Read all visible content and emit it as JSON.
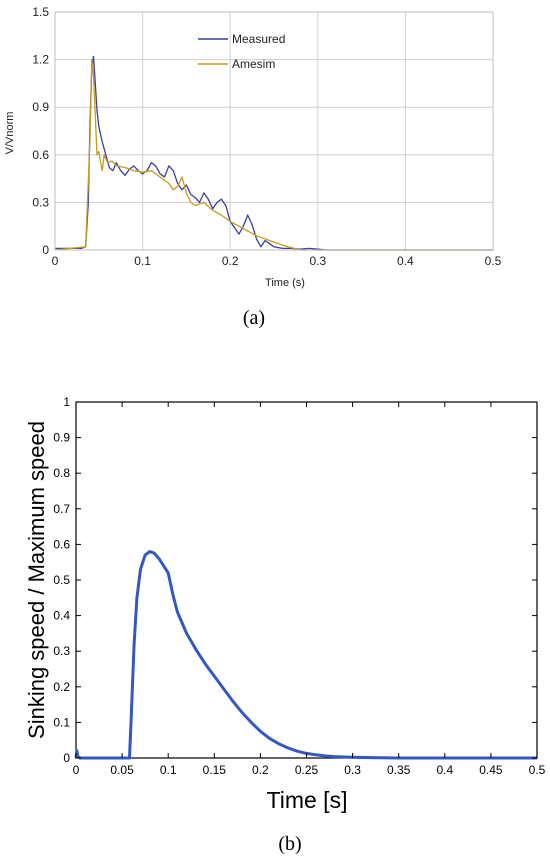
{
  "panels": [
    {
      "caption": "(a)",
      "chart_data": {
        "type": "line",
        "title": "",
        "xlabel": "Time (s)",
        "ylabel": "V/Vnorm",
        "xlim": [
          0,
          0.5
        ],
        "ylim": [
          0,
          1.5
        ],
        "xticks": [
          0,
          0.1,
          0.2,
          0.3,
          0.4,
          0.5
        ],
        "xtick_labels": [
          "0",
          "0.1",
          "0.2",
          "0.3",
          "0.4",
          "0.5"
        ],
        "yticks": [
          0,
          0.3,
          0.6,
          0.9,
          1.2,
          1.5
        ],
        "ytick_labels": [
          "0",
          "0.3",
          "0.6",
          "0.9",
          "1.2",
          "1.5"
        ],
        "grid": true,
        "legend": "top-center",
        "series": [
          {
            "name": "Measured",
            "color": "#3b3f9c",
            "x": [
              0,
              0.03,
              0.035,
              0.038,
              0.04,
              0.042,
              0.044,
              0.046,
              0.048,
              0.05,
              0.054,
              0.058,
              0.062,
              0.066,
              0.07,
              0.075,
              0.08,
              0.085,
              0.09,
              0.095,
              0.1,
              0.105,
              0.11,
              0.115,
              0.12,
              0.125,
              0.13,
              0.135,
              0.14,
              0.145,
              0.15,
              0.155,
              0.16,
              0.165,
              0.17,
              0.175,
              0.18,
              0.185,
              0.19,
              0.195,
              0.2,
              0.205,
              0.21,
              0.215,
              0.22,
              0.225,
              0.23,
              0.235,
              0.24,
              0.245,
              0.25,
              0.255,
              0.26,
              0.27,
              0.28,
              0.29,
              0.3,
              0.31,
              0.5
            ],
            "y": [
              0.01,
              0.01,
              0.02,
              0.3,
              0.8,
              1.15,
              1.22,
              1.05,
              0.88,
              0.78,
              0.68,
              0.6,
              0.52,
              0.5,
              0.55,
              0.5,
              0.47,
              0.51,
              0.53,
              0.5,
              0.48,
              0.5,
              0.55,
              0.53,
              0.48,
              0.46,
              0.53,
              0.5,
              0.42,
              0.38,
              0.41,
              0.35,
              0.33,
              0.3,
              0.36,
              0.32,
              0.26,
              0.3,
              0.32,
              0.28,
              0.18,
              0.14,
              0.1,
              0.15,
              0.22,
              0.16,
              0.07,
              0.02,
              0.06,
              0.04,
              0.02,
              0.015,
              0.01,
              0.01,
              0.005,
              0.01,
              0.005,
              0,
              0
            ]
          },
          {
            "name": "Amesim",
            "color": "#c79a1f",
            "x": [
              0,
              0.035,
              0.04,
              0.042,
              0.044,
              0.046,
              0.048,
              0.05,
              0.052,
              0.054,
              0.056,
              0.06,
              0.065,
              0.07,
              0.08,
              0.09,
              0.1,
              0.11,
              0.12,
              0.13,
              0.135,
              0.14,
              0.145,
              0.15,
              0.155,
              0.16,
              0.17,
              0.18,
              0.19,
              0.2,
              0.21,
              0.22,
              0.23,
              0.24,
              0.25,
              0.26,
              0.27,
              0.28,
              0.3,
              0.5
            ],
            "y": [
              0,
              0.02,
              0.7,
              1.2,
              1.1,
              0.85,
              0.6,
              0.62,
              0.55,
              0.5,
              0.6,
              0.55,
              0.56,
              0.53,
              0.52,
              0.5,
              0.49,
              0.5,
              0.46,
              0.42,
              0.38,
              0.4,
              0.46,
              0.36,
              0.3,
              0.28,
              0.3,
              0.25,
              0.22,
              0.18,
              0.15,
              0.12,
              0.09,
              0.07,
              0.05,
              0.03,
              0.015,
              0,
              0,
              0
            ]
          }
        ]
      }
    },
    {
      "caption": "(b)",
      "chart_data": {
        "type": "line",
        "title": "",
        "xlabel": "Time [s]",
        "ylabel": "Sinking speed / Maximum speed",
        "xlim": [
          0,
          0.5
        ],
        "ylim": [
          0,
          1
        ],
        "xticks": [
          0,
          0.05,
          0.1,
          0.15,
          0.2,
          0.25,
          0.3,
          0.35,
          0.4,
          0.45,
          0.5
        ],
        "xtick_labels": [
          "0",
          "0.05",
          "0.1",
          "0.15",
          "0.2",
          "0.25",
          "0.3",
          "0.35",
          "0.4",
          "0.45",
          "0.5"
        ],
        "yticks": [
          0,
          0.1,
          0.2,
          0.3,
          0.4,
          0.5,
          0.6,
          0.7,
          0.8,
          0.9,
          1
        ],
        "ytick_labels": [
          "0",
          "0.1",
          "0.2",
          "0.3",
          "0.4",
          "0.5",
          "0.6",
          "0.7",
          "0.8",
          "0.9",
          "1"
        ],
        "grid": false,
        "series": [
          {
            "color": "#3358c4",
            "x": [
              0,
              0.001,
              0.002,
              0.004,
              0.058,
              0.06,
              0.063,
              0.066,
              0.07,
              0.075,
              0.08,
              0.085,
              0.09,
              0.095,
              0.1,
              0.105,
              0.11,
              0.12,
              0.13,
              0.14,
              0.15,
              0.16,
              0.17,
              0.18,
              0.19,
              0.2,
              0.21,
              0.22,
              0.23,
              0.24,
              0.25,
              0.26,
              0.27,
              0.28,
              0.3,
              0.32,
              0.35,
              0.4,
              0.5
            ],
            "y": [
              0,
              0.02,
              0.005,
              0,
              0,
              0.12,
              0.32,
              0.45,
              0.53,
              0.57,
              0.58,
              0.575,
              0.56,
              0.54,
              0.52,
              0.46,
              0.41,
              0.35,
              0.305,
              0.265,
              0.23,
              0.195,
              0.16,
              0.128,
              0.1,
              0.075,
              0.055,
              0.04,
              0.028,
              0.019,
              0.013,
              0.009,
              0.006,
              0.004,
              0.002,
              0.001,
              0,
              0,
              0
            ]
          }
        ]
      }
    }
  ]
}
